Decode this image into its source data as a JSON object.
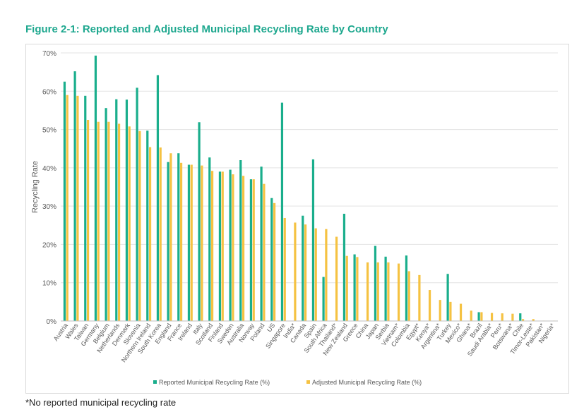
{
  "figure": {
    "title": "Figure 2-1: Reported and Adjusted Municipal Recycling Rate by Country",
    "footnote": "*No reported municipal recycling rate"
  },
  "colors": {
    "reported": "#1aae8c",
    "adjusted": "#f5c242",
    "grid": "#e3e3e3",
    "axis_text": "#595959"
  },
  "chart_data": {
    "type": "bar",
    "title": "",
    "xlabel": "",
    "ylabel": "Recycling Rate",
    "ylim": [
      0,
      70
    ],
    "ytick_labels": [
      "0%",
      "10%",
      "20%",
      "30%",
      "40%",
      "50%",
      "60%",
      "70%"
    ],
    "grid": true,
    "legend_position": "bottom",
    "categories": [
      "Austria",
      "Wales",
      "Taiwan",
      "Germany",
      "Belgium",
      "Netherlands",
      "Denmark",
      "Slovenia",
      "Northern Ireland",
      "South Korea",
      "England",
      "France",
      "Ireland",
      "Italy",
      "Scotland",
      "Finland",
      "Sweden",
      "Australia",
      "Norway",
      "Poland",
      "US",
      "Singapore",
      "India*",
      "Canada",
      "Spain",
      "South Africa",
      "Thailand*",
      "New Zealand",
      "Greece",
      "China",
      "Japan",
      "Serbia",
      "Vietnam*",
      "Colombia",
      "Egypt*",
      "Kenya*",
      "Argentina*",
      "Turkey",
      "Mexico*",
      "Ghana*",
      "Brazil",
      "Saudi Arabia*",
      "Peru*",
      "Botswana*",
      "Chile",
      "Timor-Leste*",
      "Pakistan*",
      "Nigeria*"
    ],
    "series": [
      {
        "name": "Reported Municipal Recycling Rate (%)",
        "values": [
          62.5,
          65.2,
          58.8,
          69.3,
          55.6,
          57.9,
          57.8,
          60.9,
          49.7,
          64.2,
          41.5,
          43.8,
          40.8,
          51.9,
          42.7,
          39.0,
          39.5,
          42.0,
          37.0,
          40.3,
          32.1,
          57.0,
          null,
          27.5,
          42.2,
          11.5,
          null,
          28.0,
          17.4,
          null,
          19.6,
          16.8,
          null,
          17.1,
          null,
          null,
          null,
          12.3,
          null,
          null,
          2.3,
          null,
          null,
          null,
          2.0,
          null,
          null,
          null
        ]
      },
      {
        "name": "Adjusted Municipal Recycling Rate (%)",
        "values": [
          59.0,
          58.8,
          52.5,
          52.0,
          52.0,
          51.5,
          50.8,
          49.6,
          45.4,
          45.3,
          43.8,
          41.3,
          40.8,
          40.6,
          39.2,
          39.0,
          38.3,
          37.9,
          37.0,
          35.8,
          30.8,
          26.9,
          25.7,
          25.2,
          24.2,
          24.0,
          22.0,
          17.0,
          16.7,
          15.3,
          15.3,
          15.3,
          15.0,
          13.0,
          12.0,
          8.1,
          5.5,
          5.0,
          4.5,
          2.7,
          2.3,
          2.1,
          2.0,
          1.9,
          0.5,
          0.5,
          0.1,
          0.1
        ]
      }
    ]
  }
}
